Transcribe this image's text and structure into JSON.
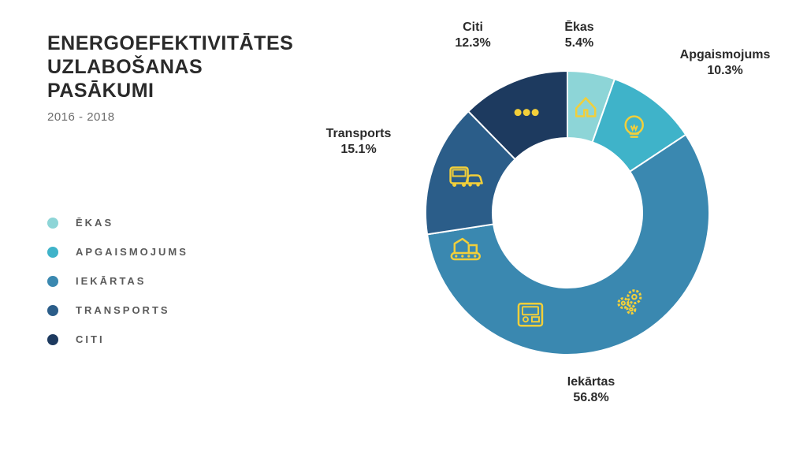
{
  "title_line1": "ENERGOEFEKTIVITĀTES",
  "title_line2": "UZLABOŠANAS",
  "title_line3": "PASĀKUMI",
  "subtitle": "2016 - 2018",
  "chart": {
    "type": "donut",
    "background_color": "#ffffff",
    "icon_color": "#f2cf3a",
    "outer_radius": 180,
    "inner_radius": 95,
    "label_fontsize": 16,
    "title_fontsize": 25,
    "legend_fontsize": 13,
    "slices": [
      {
        "key": "ekas",
        "label": "Ēkas",
        "value": 5.4,
        "pct": "5.4%",
        "color": "#8dd5d7"
      },
      {
        "key": "apgaismojums",
        "label": "Apgaismojums",
        "value": 10.3,
        "pct": "10.3%",
        "color": "#3fb3c9"
      },
      {
        "key": "iekartas",
        "label": "Iekārtas",
        "value": 56.8,
        "pct": "56.8%",
        "color": "#3a88b0"
      },
      {
        "key": "transports",
        "label": "Transports",
        "value": 15.1,
        "pct": "15.1%",
        "color": "#2b5d89"
      },
      {
        "key": "citi",
        "label": "Citi",
        "value": 12.3,
        "pct": "12.3%",
        "color": "#1d3a5f"
      }
    ],
    "legend": [
      {
        "label": "ĒKAS",
        "color": "#8dd5d7"
      },
      {
        "label": "APGAISMOJUMS",
        "color": "#3fb3c9"
      },
      {
        "label": "IEKĀRTAS",
        "color": "#3a88b0"
      },
      {
        "label": "TRANSPORTS",
        "color": "#2b5d89"
      },
      {
        "label": "CITI",
        "color": "#1d3a5f"
      }
    ]
  }
}
